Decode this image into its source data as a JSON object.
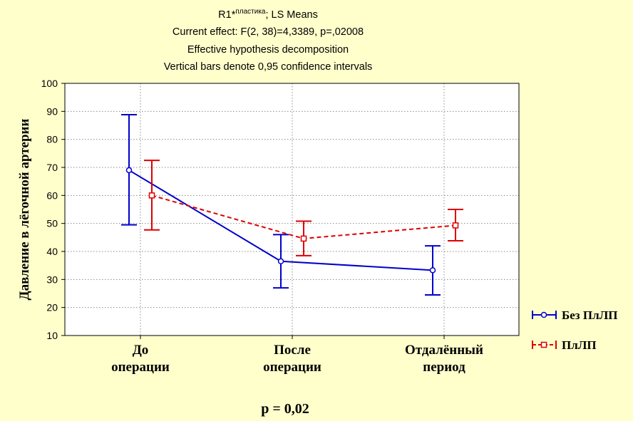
{
  "header": {
    "line1_main": "R1*",
    "line1_sup": "пластика",
    "line1_tail": "; LS Means",
    "line2": "Current effect: F(2, 38)=4,3389, p=,02008",
    "line3": "Effective hypothesis decomposition",
    "line4": "Vertical bars denote 0,95 confidence intervals"
  },
  "chart_data": {
    "type": "line",
    "ylabel": "Давление в лёгочной артерии",
    "ylim": [
      10,
      100
    ],
    "yticks": [
      10,
      20,
      30,
      40,
      50,
      60,
      70,
      80,
      90,
      100
    ],
    "categories": [
      [
        "До",
        "операции"
      ],
      [
        "После",
        "операции"
      ],
      [
        "Отдалённый",
        "период"
      ]
    ],
    "grid": true,
    "legend_position": "right",
    "series": [
      {
        "name": "Без ПлЛП",
        "color": "#0000cc",
        "line_style": "solid",
        "marker": "circle",
        "values": [
          69,
          36.5,
          33.3
        ],
        "ci_low": [
          49.5,
          27,
          24.5
        ],
        "ci_high": [
          88.8,
          46,
          42
        ]
      },
      {
        "name": "ПлЛП",
        "color": "#dd0000",
        "line_style": "dashed",
        "marker": "square",
        "values": [
          60,
          44.6,
          49.3
        ],
        "ci_low": [
          47.7,
          38.5,
          43.8
        ],
        "ci_high": [
          72.5,
          50.8,
          55
        ]
      }
    ],
    "annotation": "p = 0,02"
  }
}
